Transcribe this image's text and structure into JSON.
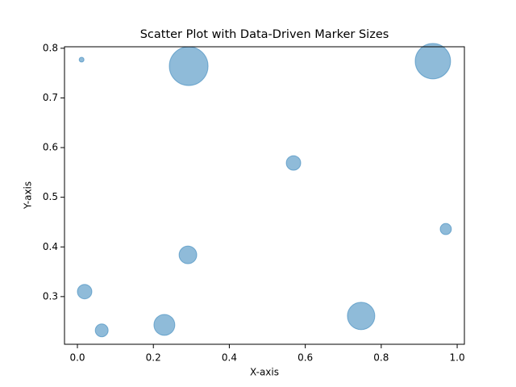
{
  "chart_data": {
    "type": "scatter",
    "title": "Scatter Plot with Data-Driven Marker Sizes",
    "x_label": "X-axis",
    "y_label": "Y-axis",
    "x": [
      0.011,
      0.293,
      0.936,
      0.569,
      0.97,
      0.291,
      0.019,
      0.064,
      0.229,
      0.747
    ],
    "y": [
      0.777,
      0.764,
      0.774,
      0.569,
      0.436,
      0.384,
      0.31,
      0.232,
      0.243,
      0.261
    ],
    "sizes": [
      19,
      1200,
      1000,
      168,
      100,
      250,
      168,
      133,
      350,
      600
    ],
    "color": "#1f77b4",
    "alpha": 0.5,
    "xlim": [
      -0.034,
      1.019
    ],
    "ylim": [
      0.204,
      0.803
    ],
    "xticks": [
      {
        "value": 0,
        "label": "0.0"
      },
      0.2,
      0.4,
      0.6,
      0.8,
      {
        "value": 1,
        "label": "1.0"
      }
    ],
    "yticks": [
      0.3,
      0.4,
      0.5,
      0.6,
      0.7,
      0.8
    ],
    "grid": false
  }
}
